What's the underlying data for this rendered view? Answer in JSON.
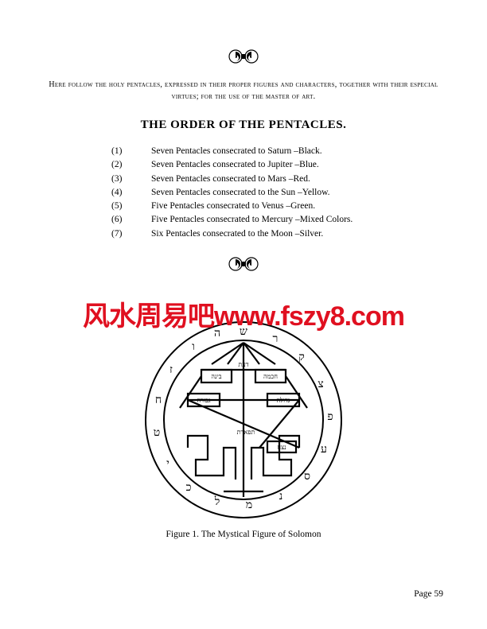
{
  "intro": "Here follow the holy pentacles, expressed in their proper figures and characters, together with their especial virtues; for the use of the master of art.",
  "heading": "THE ORDER OF THE PENTACLES.",
  "list": [
    {
      "num": "(1)",
      "text": "Seven Pentacles consecrated to Saturn –Black."
    },
    {
      "num": "(2)",
      "text": "Seven Pentacles consecrated to Jupiter –Blue."
    },
    {
      "num": "(3)",
      "text": "Seven Pentacles consecrated to Mars –Red."
    },
    {
      "num": "(4)",
      "text": "Seven Pentacles consecrated to the Sun –Yellow."
    },
    {
      "num": "(5)",
      "text": "Five Pentacles consecrated to Venus –Green."
    },
    {
      "num": "(6)",
      "text": "Five Pentacles consecrated to Mercury –Mixed Colors."
    },
    {
      "num": "(7)",
      "text": "Six Pentacles consecrated to the Moon –Silver."
    }
  ],
  "watermark": "风水周易吧www.fszy8.com",
  "caption": "Figure 1. The Mystical Figure of Solomon",
  "page_label": "Page 59",
  "colors": {
    "text": "#000000",
    "background": "#ffffff",
    "watermark": "#e01020"
  },
  "figure": {
    "diameter": 250,
    "ring_outer": 123,
    "ring_inner": 100,
    "stroke": "#000000",
    "fill": "#ffffff"
  }
}
